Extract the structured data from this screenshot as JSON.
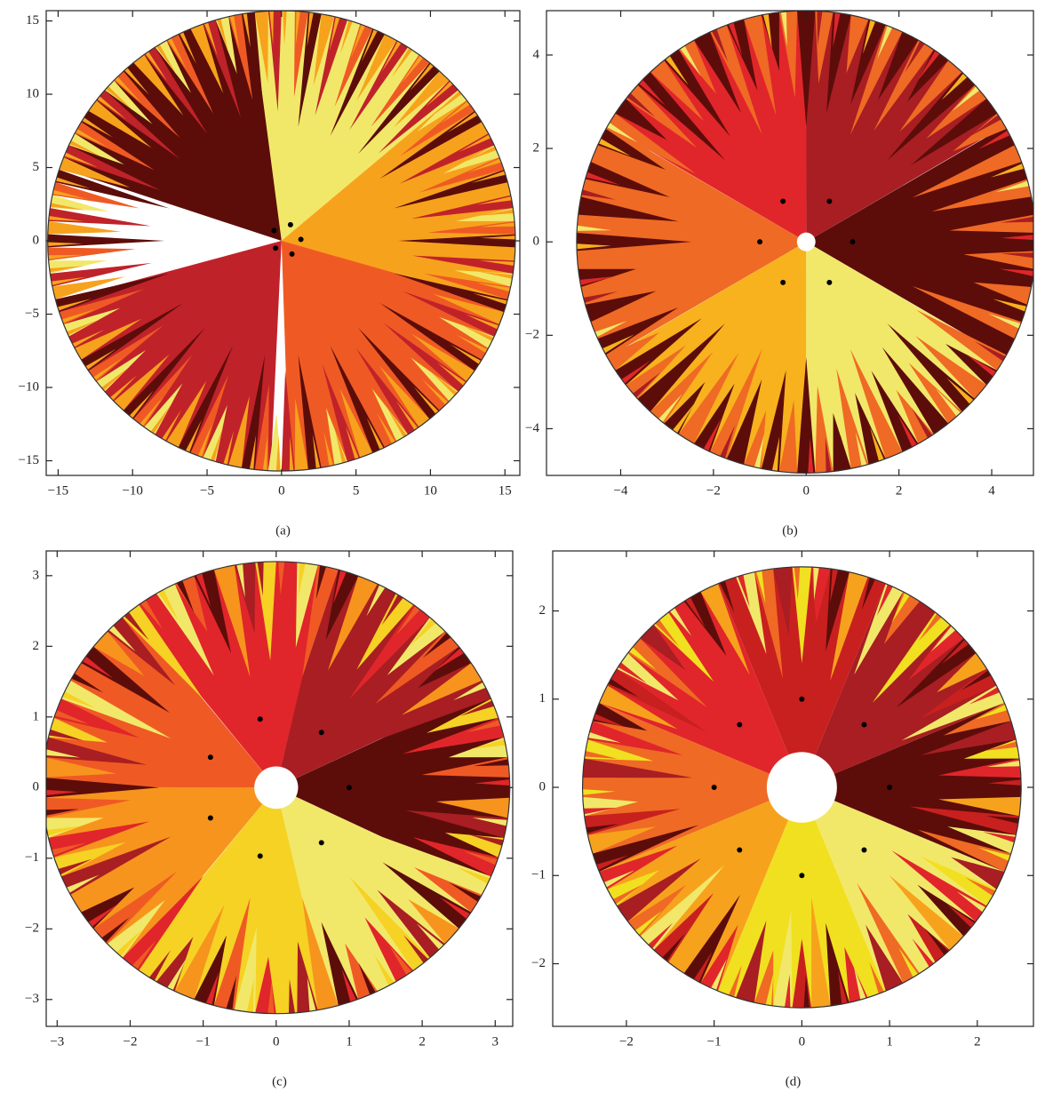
{
  "chart_data": [
    {
      "type": "scatter",
      "label": "(a)",
      "color": "#000000",
      "x": [
        -0.5,
        0.6,
        1.3,
        0.7,
        -0.4
      ],
      "y": [
        0.7,
        1.1,
        0.1,
        -0.9,
        -0.5
      ],
      "xlim": [
        -15.8,
        16.0
      ],
      "ylim": [
        -16.0,
        15.7
      ],
      "xticks": [
        {
          "value": -15,
          "label": "−15"
        },
        {
          "value": -10,
          "label": "−10"
        },
        {
          "value": -5,
          "label": "−5"
        },
        0,
        5,
        10,
        15
      ],
      "yticks": [
        {
          "value": -15,
          "label": "−15"
        },
        {
          "value": -10,
          "label": "−10"
        },
        {
          "value": -5,
          "label": "−5"
        },
        0,
        5,
        10,
        15
      ],
      "basin_colors": [
        "#5c0d0a",
        "#f1e86a",
        "#f7a21d",
        "#ef5a24",
        "#c0222a"
      ]
    },
    {
      "type": "scatter",
      "label": "(b)",
      "color": "#000000",
      "x": [
        1,
        0.5,
        -0.5,
        -1,
        -0.5,
        0.5
      ],
      "y": [
        0,
        0.87,
        0.87,
        0,
        -0.87,
        -0.87
      ],
      "xlim": [
        -5.6,
        4.9
      ],
      "ylim": [
        -5.0,
        4.95
      ],
      "xticks": [
        {
          "value": -4,
          "label": "−4"
        },
        {
          "value": -2,
          "label": "−2"
        },
        0,
        2,
        4
      ],
      "yticks": [
        {
          "value": -4,
          "label": "−4"
        },
        {
          "value": -2,
          "label": "−2"
        },
        0,
        2,
        4
      ],
      "basin_colors": [
        "#5c0d0a",
        "#a81e22",
        "#e0262a",
        "#ef6a24",
        "#f7b21d",
        "#f1e86a"
      ]
    },
    {
      "type": "scatter",
      "label": "(c)",
      "color": "#000000",
      "x": [
        1,
        0.62,
        -0.22,
        -0.9,
        -0.9,
        -0.22,
        0.62
      ],
      "y": [
        0,
        0.78,
        0.97,
        0.43,
        -0.43,
        -0.97,
        -0.78
      ],
      "xlim": [
        -3.15,
        3.24
      ],
      "ylim": [
        -3.38,
        3.35
      ],
      "xticks": [
        {
          "value": -3,
          "label": "−3"
        },
        {
          "value": -2,
          "label": "−2"
        },
        {
          "value": -1,
          "label": "−1"
        },
        0,
        1,
        2,
        3
      ],
      "yticks": [
        {
          "value": -3,
          "label": "−3"
        },
        {
          "value": -2,
          "label": "−2"
        },
        {
          "value": -1,
          "label": "−1"
        },
        0,
        1,
        2,
        3
      ],
      "basin_colors": [
        "#5c0d0a",
        "#a81e22",
        "#e0262a",
        "#ef5a24",
        "#f7941d",
        "#f5d224",
        "#f1e86a"
      ]
    },
    {
      "type": "scatter",
      "label": "(d)",
      "color": "#000000",
      "x": [
        1,
        0.71,
        0,
        -0.71,
        -1,
        -0.71,
        0,
        0.71
      ],
      "y": [
        0,
        0.71,
        1,
        0.71,
        0,
        -0.71,
        -1,
        -0.71
      ],
      "xlim": [
        -2.84,
        2.64
      ],
      "ylim": [
        -2.71,
        2.68
      ],
      "xticks": [
        {
          "value": -2,
          "label": "−2"
        },
        {
          "value": -1,
          "label": "−1"
        },
        0,
        1,
        2
      ],
      "yticks": [
        {
          "value": -2,
          "label": "−2"
        },
        {
          "value": -1,
          "label": "−1"
        },
        0,
        1,
        2
      ],
      "basin_colors": [
        "#5c0d0a",
        "#a81e22",
        "#c8201f",
        "#e0262a",
        "#ef6a24",
        "#f7a21d",
        "#f1e020",
        "#f1e86a"
      ]
    }
  ]
}
